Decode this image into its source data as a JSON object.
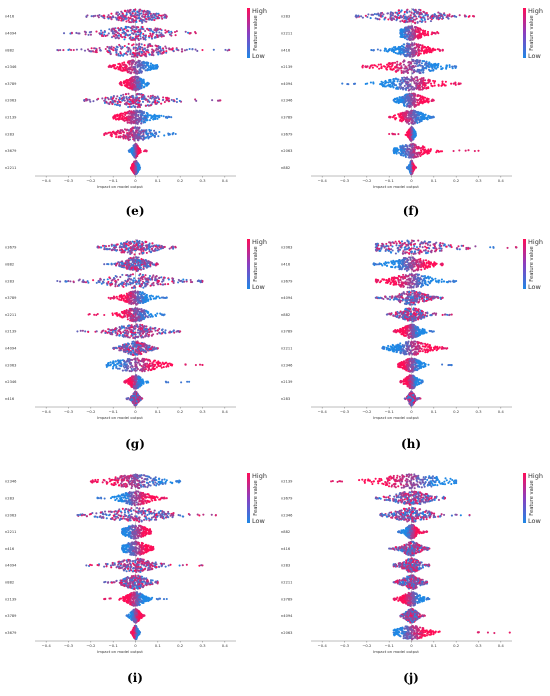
{
  "figure": {
    "colors": {
      "high": "#ff0d57",
      "low": "#1e88e5",
      "zero_line": "#999999"
    }
  },
  "chart_data": [
    {
      "type": "scatter",
      "panel": "e",
      "caption": "(e)",
      "xlabel": "Impact on model output",
      "xlim": [
        -0.45,
        0.45
      ],
      "xticks": [
        "−0.4",
        "−0.3",
        "−0.2",
        "−0.1",
        "0",
        "0.1",
        "0.2",
        "0.3",
        "0.4"
      ],
      "colorbar": {
        "high": "High",
        "low": "Low",
        "label": "Feature value"
      },
      "features": [
        {
          "name": "n416",
          "min": -0.22,
          "max": 0.14,
          "sd": 0.07,
          "high_side": "mixed"
        },
        {
          "name": "n4094",
          "min": -0.32,
          "max": 0.27,
          "sd": 0.1,
          "high_side": "mixed"
        },
        {
          "name": "n882",
          "min": -0.35,
          "max": 0.42,
          "sd": 0.1,
          "high_side": "mixed"
        },
        {
          "name": "n2346",
          "min": -0.12,
          "max": 0.1,
          "sd": 0.05,
          "high_side": "low"
        },
        {
          "name": "n3789",
          "min": -0.07,
          "max": 0.06,
          "sd": 0.03,
          "high_side": "low"
        },
        {
          "name": "n2063",
          "min": -0.23,
          "max": 0.38,
          "sd": 0.09,
          "high_side": "mixed"
        },
        {
          "name": "n2139",
          "min": -0.1,
          "max": 0.16,
          "sd": 0.05,
          "high_side": "low"
        },
        {
          "name": "n283",
          "min": -0.14,
          "max": 0.18,
          "sd": 0.06,
          "high_side": "left"
        },
        {
          "name": "n3679",
          "min": -0.03,
          "max": 0.05,
          "sd": 0.01,
          "high_side": "high"
        },
        {
          "name": "n2211",
          "min": -0.02,
          "max": 0.02,
          "sd": 0.01,
          "high_side": "low"
        }
      ]
    },
    {
      "type": "scatter",
      "panel": "f",
      "caption": "(f)",
      "xlabel": "Impact on model output",
      "xlim": [
        -0.45,
        0.45
      ],
      "xticks": [
        "−0.4",
        "−0.3",
        "−0.2",
        "−0.1",
        "0",
        "0.1",
        "0.2",
        "0.3",
        "0.4"
      ],
      "colorbar": {
        "high": "High",
        "low": "Low",
        "label": "Feature value"
      },
      "features": [
        {
          "name": "n283",
          "min": -0.25,
          "max": 0.28,
          "sd": 0.1,
          "high_side": "mixed"
        },
        {
          "name": "n2211",
          "min": -0.05,
          "max": 0.12,
          "sd": 0.04,
          "high_side": "high"
        },
        {
          "name": "n416",
          "min": -0.18,
          "max": 0.14,
          "sd": 0.05,
          "high_side": "high"
        },
        {
          "name": "n2139",
          "min": -0.22,
          "max": 0.2,
          "sd": 0.08,
          "high_side": "low"
        },
        {
          "name": "n4094",
          "min": -0.31,
          "max": 0.22,
          "sd": 0.08,
          "high_side": "high"
        },
        {
          "name": "n2346",
          "min": -0.08,
          "max": 0.1,
          "sd": 0.04,
          "high_side": "high"
        },
        {
          "name": "n3789",
          "min": -0.1,
          "max": 0.1,
          "sd": 0.04,
          "high_side": "low"
        },
        {
          "name": "n3679",
          "min": -0.1,
          "max": 0.02,
          "sd": 0.01,
          "high_side": "low"
        },
        {
          "name": "n2063",
          "min": -0.08,
          "max": 0.3,
          "sd": 0.05,
          "high_side": "high"
        },
        {
          "name": "n882",
          "min": -0.02,
          "max": 0.02,
          "sd": 0.006,
          "high_side": "high"
        }
      ]
    },
    {
      "type": "scatter",
      "panel": "g",
      "caption": "(g)",
      "xlabel": "Impact on model output",
      "xlim": [
        -0.45,
        0.45
      ],
      "xticks": [
        "−0.4",
        "−0.3",
        "−0.2",
        "−0.1",
        "0",
        "0.1",
        "0.2",
        "0.3",
        "0.4"
      ],
      "colorbar": {
        "high": "High",
        "low": "Low",
        "label": "Feature value"
      },
      "features": [
        {
          "name": "n3679",
          "min": -0.17,
          "max": 0.18,
          "sd": 0.07,
          "high_side": "mixed"
        },
        {
          "name": "n882",
          "min": -0.14,
          "max": 0.1,
          "sd": 0.04,
          "high_side": "mixed"
        },
        {
          "name": "n283",
          "min": -0.35,
          "max": 0.3,
          "sd": 0.11,
          "high_side": "mixed"
        },
        {
          "name": "n3789",
          "min": -0.12,
          "max": 0.14,
          "sd": 0.04,
          "high_side": "low"
        },
        {
          "name": "n2211",
          "min": -0.21,
          "max": 0.13,
          "sd": 0.04,
          "high_side": "left"
        },
        {
          "name": "n2139",
          "min": -0.26,
          "max": 0.2,
          "sd": 0.07,
          "high_side": "mixed"
        },
        {
          "name": "n4094",
          "min": -0.1,
          "max": 0.1,
          "sd": 0.04,
          "high_side": "mixed"
        },
        {
          "name": "n2063",
          "min": -0.13,
          "max": 0.3,
          "sd": 0.08,
          "high_side": "high"
        },
        {
          "name": "n2346",
          "min": -0.05,
          "max": 0.24,
          "sd": 0.02,
          "high_side": "low"
        },
        {
          "name": "n416",
          "min": -0.04,
          "max": 0.03,
          "sd": 0.01,
          "high_side": "mixed"
        }
      ]
    },
    {
      "type": "scatter",
      "panel": "h",
      "caption": "(h)",
      "xlabel": "Impact on model output",
      "xlim": [
        -0.45,
        0.45
      ],
      "xticks": [
        "−0.4",
        "−0.3",
        "−0.2",
        "−0.1",
        "0",
        "0.1",
        "0.2",
        "0.3",
        "0.4"
      ],
      "colorbar": {
        "high": "High",
        "low": "Low",
        "label": "Feature value"
      },
      "features": [
        {
          "name": "n2063",
          "min": -0.16,
          "max": 0.47,
          "sd": 0.12,
          "high_side": "mixed"
        },
        {
          "name": "n416",
          "min": -0.17,
          "max": 0.14,
          "sd": 0.06,
          "high_side": "high"
        },
        {
          "name": "n3679",
          "min": -0.16,
          "max": 0.2,
          "sd": 0.07,
          "high_side": "low"
        },
        {
          "name": "n4094",
          "min": -0.16,
          "max": 0.14,
          "sd": 0.05,
          "high_side": "mixed"
        },
        {
          "name": "n882",
          "min": -0.11,
          "max": 0.18,
          "sd": 0.04,
          "high_side": "mixed"
        },
        {
          "name": "n3789",
          "min": -0.08,
          "max": 0.1,
          "sd": 0.03,
          "high_side": "low"
        },
        {
          "name": "n2211",
          "min": -0.13,
          "max": 0.16,
          "sd": 0.06,
          "high_side": "high"
        },
        {
          "name": "n2346",
          "min": -0.06,
          "max": 0.18,
          "sd": 0.03,
          "high_side": "low"
        },
        {
          "name": "n2139",
          "min": -0.05,
          "max": 0.05,
          "sd": 0.02,
          "high_side": "low"
        },
        {
          "name": "n283",
          "min": -0.03,
          "max": 0.04,
          "sd": 0.01,
          "high_side": "mixed"
        }
      ]
    },
    {
      "type": "scatter",
      "panel": "i",
      "caption": "(i)",
      "xlabel": "Impact on model output",
      "xlim": [
        -0.45,
        0.45
      ],
      "xticks": [
        "−0.4",
        "−0.3",
        "−0.2",
        "−0.1",
        "0",
        "0.1",
        "0.2",
        "0.3",
        "0.4"
      ],
      "colorbar": {
        "high": "High",
        "low": "Low",
        "label": "Feature value"
      },
      "features": [
        {
          "name": "n2346",
          "min": -0.2,
          "max": 0.2,
          "sd": 0.08,
          "high_side": "left"
        },
        {
          "name": "n283",
          "min": -0.17,
          "max": 0.14,
          "sd": 0.05,
          "high_side": "high"
        },
        {
          "name": "n2063",
          "min": -0.26,
          "max": 0.36,
          "sd": 0.1,
          "high_side": "mixed"
        },
        {
          "name": "n2211",
          "min": -0.06,
          "max": 0.07,
          "sd": 0.04,
          "high_side": "high"
        },
        {
          "name": "n416",
          "min": -0.06,
          "max": 0.08,
          "sd": 0.04,
          "high_side": "high"
        },
        {
          "name": "n4094",
          "min": -0.22,
          "max": 0.3,
          "sd": 0.06,
          "high_side": "mixed"
        },
        {
          "name": "n882",
          "min": -0.14,
          "max": 0.1,
          "sd": 0.04,
          "high_side": "mixed"
        },
        {
          "name": "n2139",
          "min": -0.14,
          "max": 0.14,
          "sd": 0.03,
          "high_side": "low"
        },
        {
          "name": "n3789",
          "min": -0.04,
          "max": 0.04,
          "sd": 0.015,
          "high_side": "high"
        },
        {
          "name": "n3679",
          "min": -0.02,
          "max": 0.02,
          "sd": 0.008,
          "high_side": "low"
        }
      ]
    },
    {
      "type": "scatter",
      "panel": "j",
      "caption": "(j)",
      "xlabel": "Impact on model output",
      "xlim": [
        -0.45,
        0.45
      ],
      "xticks": [
        "−0.4",
        "−0.3",
        "−0.2",
        "−0.1",
        "0",
        "0.1",
        "0.2",
        "0.3",
        "0.4"
      ],
      "colorbar": {
        "high": "High",
        "low": "Low",
        "label": "Feature value"
      },
      "features": [
        {
          "name": "n2139",
          "min": -0.36,
          "max": 0.2,
          "sd": 0.11,
          "high_side": "low"
        },
        {
          "name": "n3679",
          "min": -0.16,
          "max": 0.15,
          "sd": 0.06,
          "high_side": "mixed"
        },
        {
          "name": "n2346",
          "min": -0.14,
          "max": 0.26,
          "sd": 0.06,
          "high_side": "mixed"
        },
        {
          "name": "n882",
          "min": -0.06,
          "max": 0.07,
          "sd": 0.02,
          "high_side": "high"
        },
        {
          "name": "n416",
          "min": -0.1,
          "max": 0.08,
          "sd": 0.03,
          "high_side": "mixed"
        },
        {
          "name": "n283",
          "min": -0.08,
          "max": 0.08,
          "sd": 0.03,
          "high_side": "mixed"
        },
        {
          "name": "n2211",
          "min": -0.08,
          "max": 0.07,
          "sd": 0.03,
          "high_side": "mixed"
        },
        {
          "name": "n3789",
          "min": -0.08,
          "max": 0.08,
          "sd": 0.03,
          "high_side": "low"
        },
        {
          "name": "n4094",
          "min": -0.05,
          "max": 0.06,
          "sd": 0.02,
          "high_side": "mixed"
        },
        {
          "name": "n2063",
          "min": -0.08,
          "max": 0.44,
          "sd": 0.05,
          "high_side": "high"
        }
      ]
    }
  ]
}
